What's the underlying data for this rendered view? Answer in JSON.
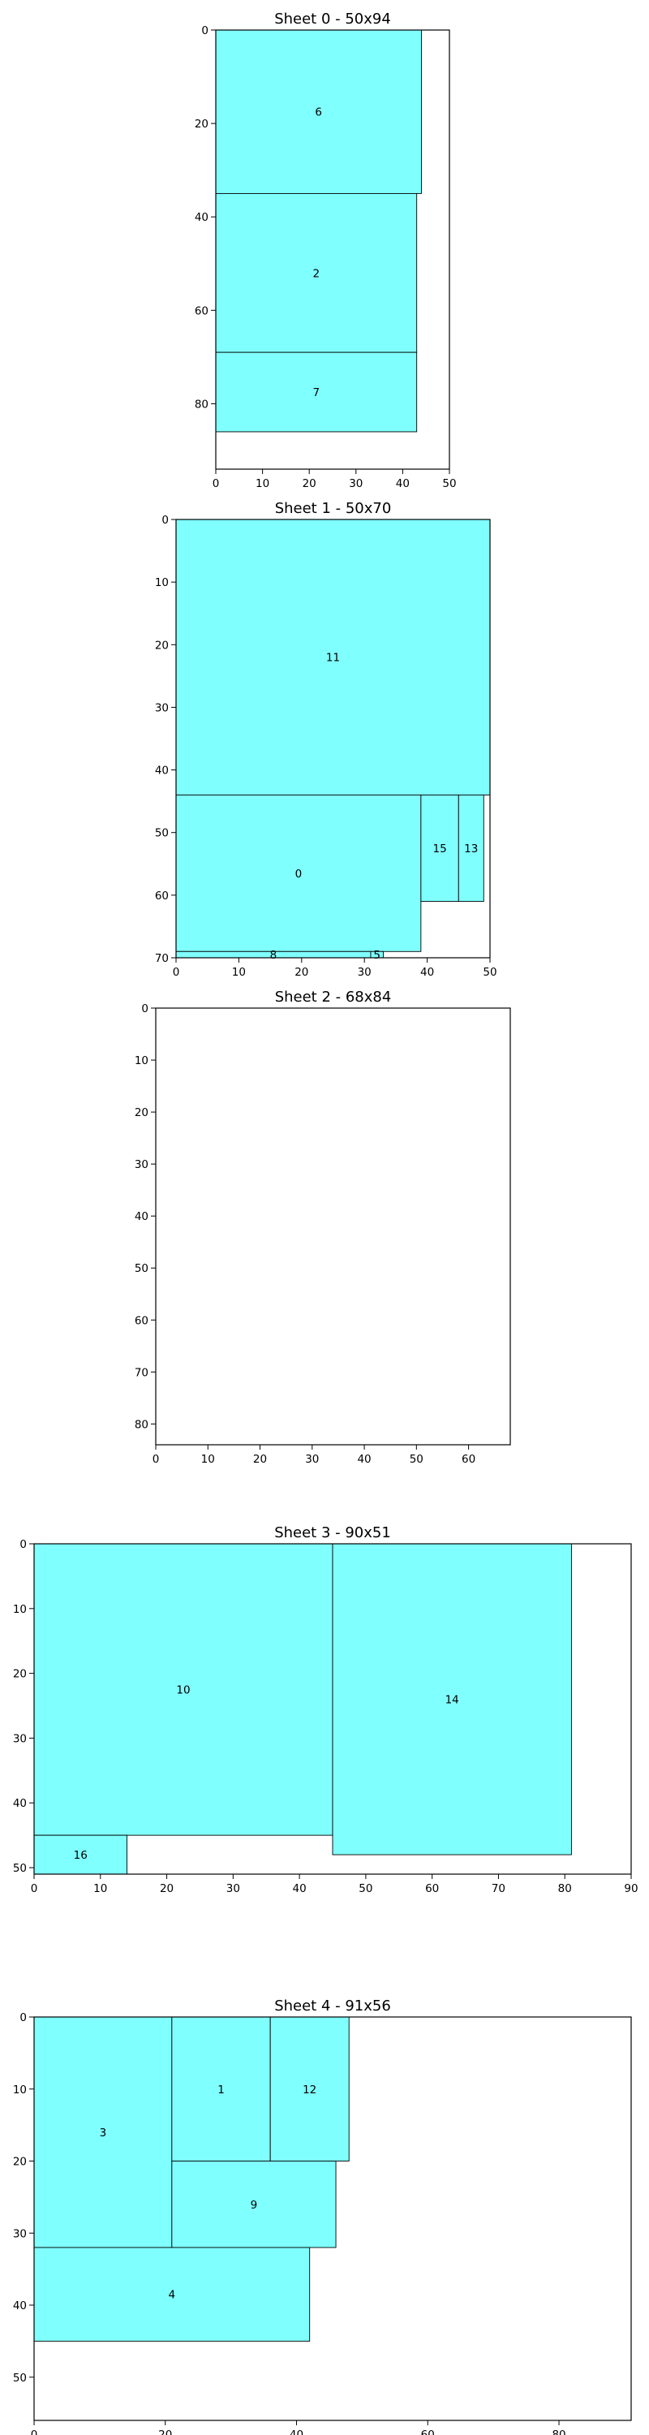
{
  "chart_data": [
    {
      "type": "rectangles",
      "title": "Sheet 0 - 50x94",
      "xlim": [
        0,
        50
      ],
      "ylim": [
        94,
        0
      ],
      "xticks": [
        0,
        10,
        20,
        30,
        40,
        50
      ],
      "yticks": [
        0,
        20,
        40,
        60,
        80
      ],
      "rects": [
        {
          "id": "6",
          "x": 0,
          "y": 0,
          "w": 44,
          "h": 35
        },
        {
          "id": "2",
          "x": 0,
          "y": 35,
          "w": 43,
          "h": 34
        },
        {
          "id": "7",
          "x": 0,
          "y": 69,
          "w": 43,
          "h": 17
        }
      ]
    },
    {
      "type": "rectangles",
      "title": "Sheet 1 - 50x70",
      "xlim": [
        0,
        50
      ],
      "ylim": [
        70,
        0
      ],
      "xticks": [
        0,
        10,
        20,
        30,
        40,
        50
      ],
      "yticks": [
        0,
        10,
        20,
        30,
        40,
        50,
        60,
        70
      ],
      "rects": [
        {
          "id": "11",
          "x": 0,
          "y": 0,
          "w": 50,
          "h": 44
        },
        {
          "id": "0",
          "x": 0,
          "y": 44,
          "w": 39,
          "h": 25
        },
        {
          "id": "15",
          "x": 39,
          "y": 44,
          "w": 6,
          "h": 17
        },
        {
          "id": "13",
          "x": 45,
          "y": 44,
          "w": 4,
          "h": 17
        },
        {
          "id": "8",
          "x": 0,
          "y": 69,
          "w": 31,
          "h": 1
        },
        {
          "id": "5",
          "x": 31,
          "y": 69,
          "w": 2,
          "h": 1
        }
      ]
    },
    {
      "type": "rectangles",
      "title": "Sheet 2 - 68x84",
      "xlim": [
        0,
        68
      ],
      "ylim": [
        84,
        0
      ],
      "xticks": [
        0,
        10,
        20,
        30,
        40,
        50,
        60
      ],
      "yticks": [
        0,
        10,
        20,
        30,
        40,
        50,
        60,
        70,
        80
      ],
      "rects": []
    },
    {
      "type": "rectangles",
      "title": "Sheet 3 - 90x51",
      "xlim": [
        0,
        90
      ],
      "ylim": [
        51,
        0
      ],
      "xticks": [
        0,
        10,
        20,
        30,
        40,
        50,
        60,
        70,
        80,
        90
      ],
      "yticks": [
        0,
        10,
        20,
        30,
        40,
        50
      ],
      "rects": [
        {
          "id": "10",
          "x": 0,
          "y": 0,
          "w": 45,
          "h": 45
        },
        {
          "id": "14",
          "x": 45,
          "y": 0,
          "w": 36,
          "h": 48
        },
        {
          "id": "16",
          "x": 0,
          "y": 45,
          "w": 14,
          "h": 6
        }
      ]
    },
    {
      "type": "rectangles",
      "title": "Sheet 4 - 91x56",
      "xlim": [
        0,
        91
      ],
      "ylim": [
        56,
        0
      ],
      "xticks": [
        0,
        20,
        40,
        60,
        80
      ],
      "yticks": [
        0,
        10,
        20,
        30,
        40,
        50
      ],
      "rects": [
        {
          "id": "3",
          "x": 0,
          "y": 0,
          "w": 21,
          "h": 32
        },
        {
          "id": "1",
          "x": 21,
          "y": 0,
          "w": 15,
          "h": 20
        },
        {
          "id": "12",
          "x": 36,
          "y": 0,
          "w": 12,
          "h": 20
        },
        {
          "id": "9",
          "x": 21,
          "y": 20,
          "w": 25,
          "h": 12
        },
        {
          "id": "4",
          "x": 0,
          "y": 32,
          "w": 42,
          "h": 13
        }
      ]
    }
  ],
  "colors": {
    "fill": "#80ffff",
    "stroke": "#000000"
  }
}
